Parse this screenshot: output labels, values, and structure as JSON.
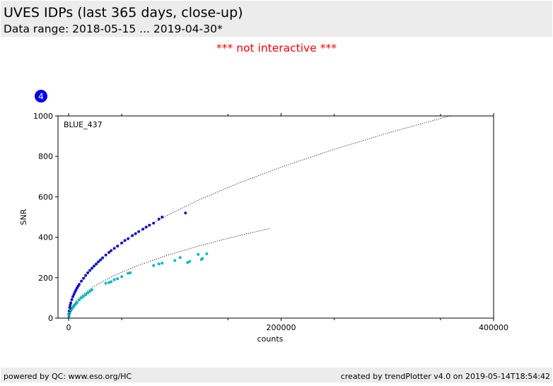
{
  "header": {
    "title": "UVES IDPs (last 365 days, close-up)",
    "subtitle": "Data range: 2018-05-15 ... 2019-04-30*"
  },
  "notice": "*** not interactive ***",
  "badge": "4",
  "footer": {
    "left": "powered by QC: www.eso.org/HC",
    "right": "created by trendPlotter v4.0 on 2019-05-14T18:54:42"
  },
  "chart_data": {
    "type": "scatter",
    "annotation": "BLUE_437",
    "x_label": "counts",
    "y_label": "SNR",
    "xlim": [
      -10000,
      400000
    ],
    "xticks": [
      0,
      200000,
      400000
    ],
    "xminorticks": [
      50000,
      150000,
      250000,
      350000
    ],
    "ylim": [
      0,
      1000
    ],
    "yticks": [
      0,
      200,
      400,
      600,
      800,
      1000
    ],
    "series": [
      {
        "color": "#1414e0",
        "mode": "points",
        "x": [
          200,
          500,
          1000,
          1500,
          2000,
          3000,
          4000,
          5000,
          6000,
          7000,
          8000,
          9000,
          10000,
          12000,
          14000,
          16000,
          18000,
          20000,
          22000,
          24000,
          26000,
          28000,
          30000,
          32000,
          35000,
          38000,
          40000,
          43000,
          46000,
          50000,
          53000,
          56000,
          60000,
          63000,
          66000,
          70000,
          73000,
          76000,
          80000,
          85000,
          88000,
          110000
        ],
        "values": [
          20,
          35,
          52,
          64,
          75,
          92,
          106,
          118,
          130,
          140,
          150,
          158,
          167,
          183,
          197,
          211,
          224,
          236,
          247,
          258,
          268,
          279,
          288,
          298,
          312,
          325,
          334,
          345,
          356,
          372,
          384,
          393,
          408,
          418,
          428,
          440,
          450,
          460,
          470,
          490,
          500,
          520
        ]
      },
      {
        "color": "#00bcbc",
        "mode": "points",
        "x": [
          200,
          500,
          1000,
          2000,
          3000,
          4000,
          5000,
          6000,
          7000,
          8000,
          10000,
          12000,
          14000,
          16000,
          18000,
          20000,
          22000,
          35000,
          38000,
          40000,
          43000,
          46000,
          50000,
          56000,
          58000,
          80000,
          85000,
          88000,
          100000,
          105000,
          112000,
          114000,
          122000,
          125000,
          126000,
          130000
        ],
        "values": [
          8,
          16,
          25,
          36,
          45,
          52,
          60,
          66,
          72,
          78,
          90,
          100,
          108,
          116,
          124,
          132,
          140,
          172,
          176,
          180,
          190,
          195,
          205,
          222,
          224,
          260,
          268,
          272,
          285,
          300,
          275,
          280,
          315,
          290,
          295,
          318
        ]
      },
      {
        "color": "#000000",
        "mode": "dotted-line",
        "x": [
          0,
          2500,
          10000,
          22500,
          40000,
          62500,
          90000,
          122500,
          160000,
          202500,
          250000,
          302500,
          360000
        ],
        "values": [
          0,
          83.5,
          167,
          250.5,
          334,
          417.5,
          501,
          584.5,
          668,
          751.5,
          835,
          918.5,
          1002
        ]
      },
      {
        "color": "#000000",
        "mode": "dotted-line",
        "x": [
          0,
          2500,
          10000,
          22500,
          40000,
          62500,
          90000,
          122500,
          160000,
          189000
        ],
        "values": [
          0,
          51,
          102,
          153,
          204,
          255,
          306,
          357,
          408,
          443
        ]
      }
    ]
  }
}
